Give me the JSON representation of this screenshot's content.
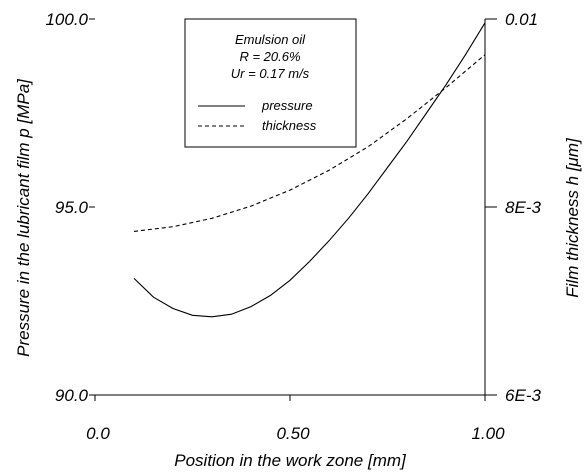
{
  "chart_data": {
    "type": "line",
    "xlabel": "Position in the work zone [mm]",
    "ylabel_left": "Pressure in the lubricant film p [MPa]",
    "ylabel_right": "Film thickness h [μm]",
    "xlim": [
      0.0,
      1.0
    ],
    "ylim_left": [
      90.0,
      100.0
    ],
    "ylim_right": [
      0.006,
      0.01
    ],
    "x_ticks": [
      "0.0",
      "0.50",
      "1.00"
    ],
    "y_ticks_left": [
      "90.0",
      "95.0",
      "100.0"
    ],
    "y_ticks_right": [
      "6E-3",
      "8E-3",
      "0.01"
    ],
    "legend": {
      "title_lines": [
        "Emulsion oil",
        "R = 20.6%",
        "Ur = 0.17 m/s"
      ],
      "entries": [
        "pressure",
        "thickness"
      ],
      "placement": "top-center"
    },
    "series": [
      {
        "name": "pressure",
        "axis": "left",
        "style": "solid",
        "x": [
          0.1,
          0.15,
          0.2,
          0.25,
          0.3,
          0.35,
          0.4,
          0.45,
          0.5,
          0.55,
          0.6,
          0.65,
          0.7,
          0.75,
          0.8,
          0.85,
          0.9,
          0.95,
          1.0
        ],
        "y": [
          93.1,
          92.6,
          92.3,
          92.12,
          92.08,
          92.15,
          92.35,
          92.65,
          93.05,
          93.55,
          94.1,
          94.7,
          95.35,
          96.05,
          96.75,
          97.5,
          98.25,
          99.05,
          99.9
        ]
      },
      {
        "name": "thickness",
        "axis": "right",
        "style": "dashed",
        "x": [
          0.1,
          0.2,
          0.3,
          0.4,
          0.5,
          0.6,
          0.7,
          0.8,
          0.9,
          1.0
        ],
        "y": [
          0.00774,
          0.00779,
          0.00788,
          0.00801,
          0.00818,
          0.00839,
          0.00864,
          0.00894,
          0.00927,
          0.00962
        ]
      }
    ]
  }
}
